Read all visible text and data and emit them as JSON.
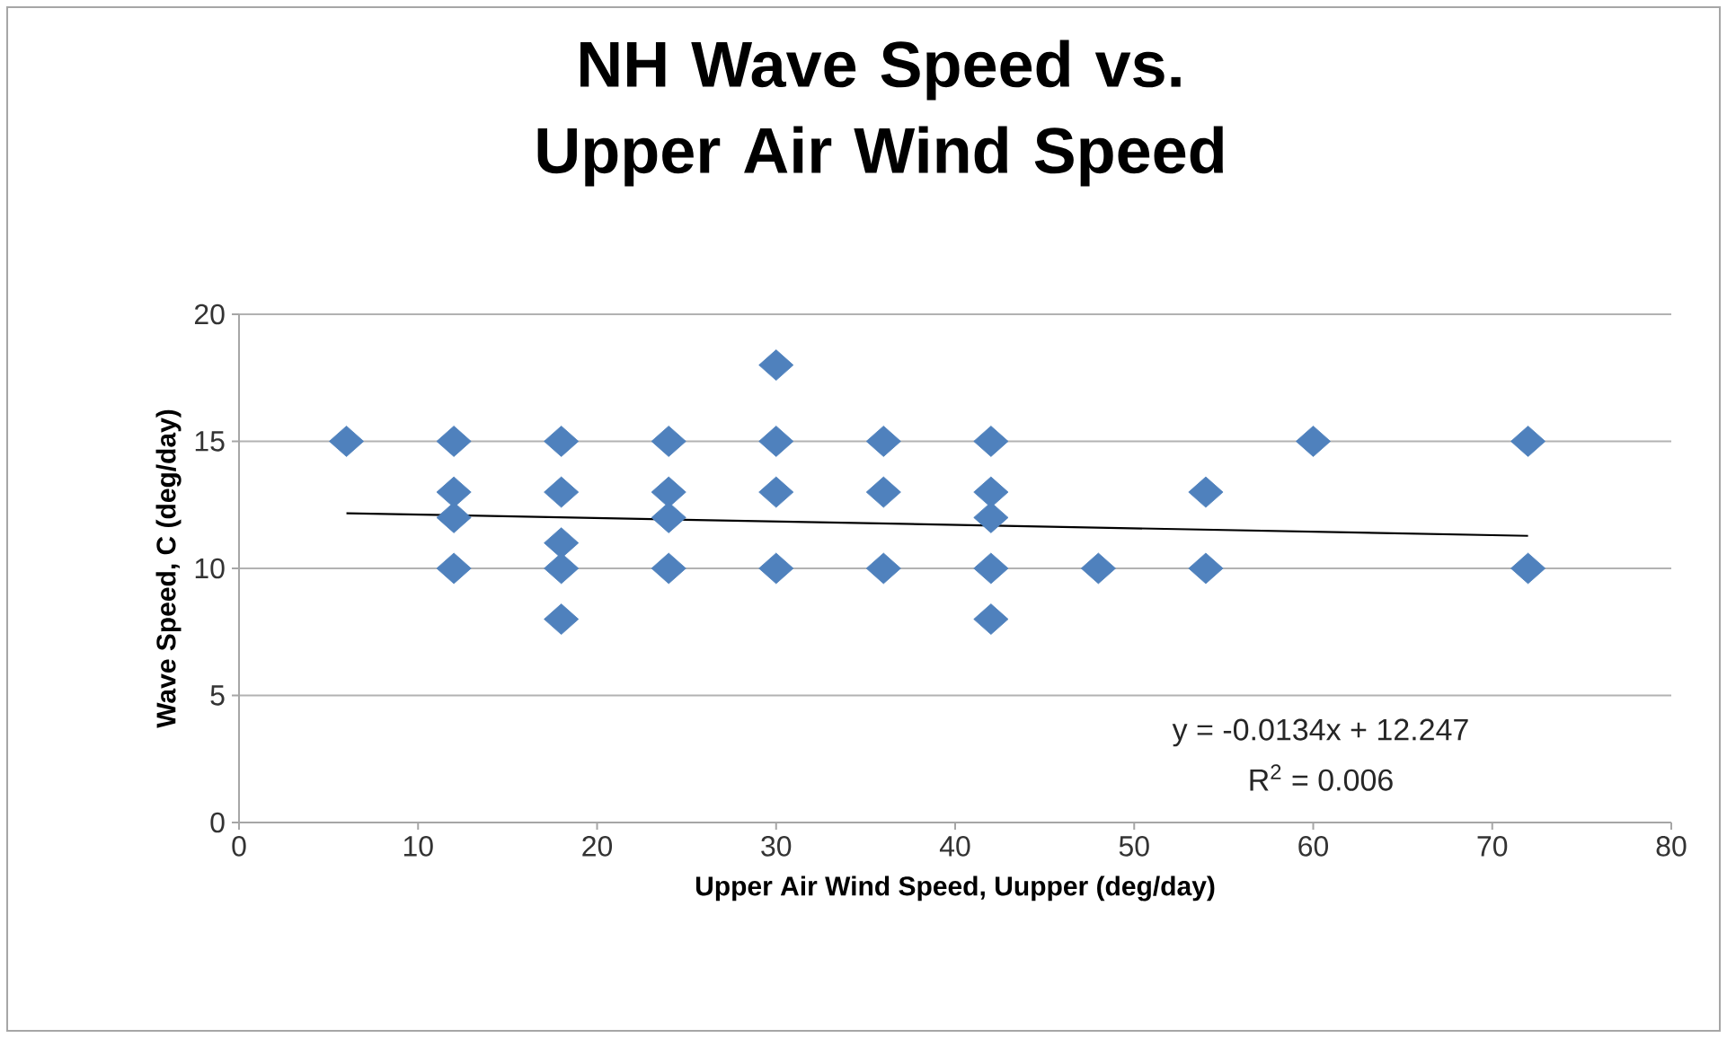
{
  "chart_data": {
    "type": "scatter",
    "title": "NH Wave Speed vs. Upper Air Wind Speed",
    "xlabel": "Upper Air Wind Speed, Uupper (deg/day)",
    "ylabel": "Wave Speed, C (deg/day)",
    "xlim": [
      0,
      80
    ],
    "xticks": [
      0,
      10,
      20,
      30,
      40,
      50,
      60,
      70,
      80
    ],
    "ylim": [
      0,
      20
    ],
    "yticks": [
      0,
      5,
      10,
      15,
      20
    ],
    "grid": "y",
    "series": [
      {
        "marker": "diamond",
        "color": "#4f81bd",
        "x": [
          6,
          12,
          12,
          12,
          12,
          18,
          18,
          18,
          18,
          18,
          24,
          24,
          24,
          24,
          30,
          30,
          30,
          30,
          36,
          36,
          36,
          42,
          42,
          42,
          42,
          42,
          48,
          54,
          54,
          60,
          72,
          72
        ],
        "values": [
          15,
          15,
          13,
          12,
          10,
          15,
          13,
          11,
          10,
          8,
          15,
          13,
          12,
          10,
          18,
          15,
          13,
          10,
          15,
          13,
          10,
          15,
          13,
          12,
          10,
          8,
          10,
          13,
          10,
          15,
          15,
          10
        ]
      },
      {
        "type": "line",
        "marker": "none",
        "color": "#000000",
        "x": [
          6,
          72
        ],
        "values": [
          12.17,
          11.28
        ]
      }
    ],
    "annotations": [
      "y = -0.0134x + 12.247",
      "R$^{2}$ = 0.006"
    ]
  }
}
